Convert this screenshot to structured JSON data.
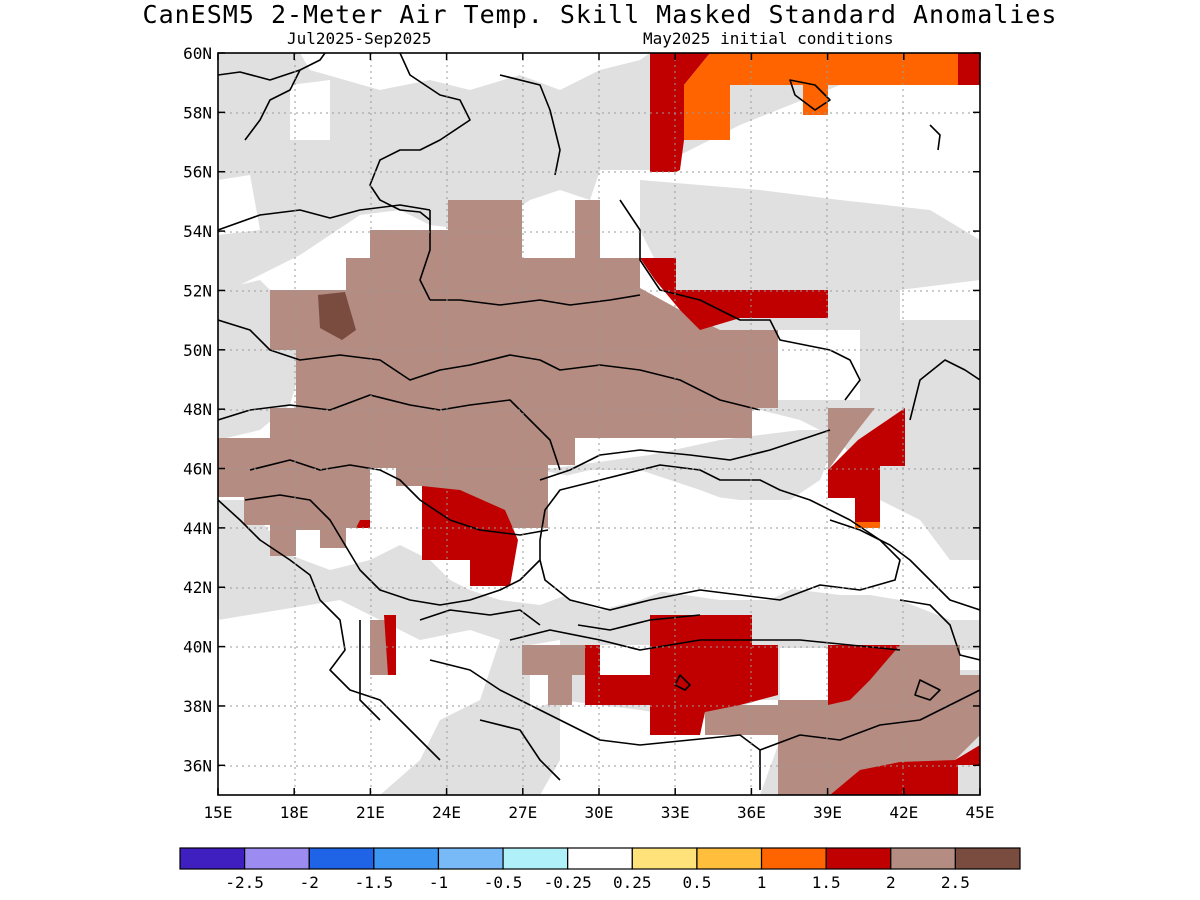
{
  "title": "CanESM5 2-Meter Air Temp. Skill Masked Standard Anomalies",
  "period": "Jul2025-Sep2025",
  "init": "May2025 initial conditions",
  "lat_labels": [
    "60N",
    "58N",
    "56N",
    "54N",
    "52N",
    "50N",
    "48N",
    "46N",
    "44N",
    "42N",
    "40N",
    "38N",
    "36N"
  ],
  "lon_labels": [
    "15E",
    "18E",
    "21E",
    "24E",
    "27E",
    "30E",
    "33E",
    "36E",
    "39E",
    "42E",
    "45E"
  ],
  "colorbar": {
    "colors": [
      "#3f1fbf",
      "#9c8cf2",
      "#1f64e6",
      "#3c96f2",
      "#78b9f8",
      "#b0f0f8",
      "#ffffff",
      "#ffe27a",
      "#ffbe3c",
      "#ff6400",
      "#c00000",
      "#b48c82",
      "#7a4c40"
    ],
    "labels": [
      "-2.5",
      "-2",
      "-1.5",
      "-1",
      "-0.5",
      "-0.25",
      "0.25",
      "0.5",
      "1",
      "1.5",
      "2",
      "2.5"
    ]
  },
  "colors": {
    "mask_gray": "#e0e0e0",
    "anom_1_5": "#ff6400",
    "anom_2": "#c00000",
    "anom_2_5": "#b48c82",
    "anom_gt_2_5": "#7a4c40"
  }
}
